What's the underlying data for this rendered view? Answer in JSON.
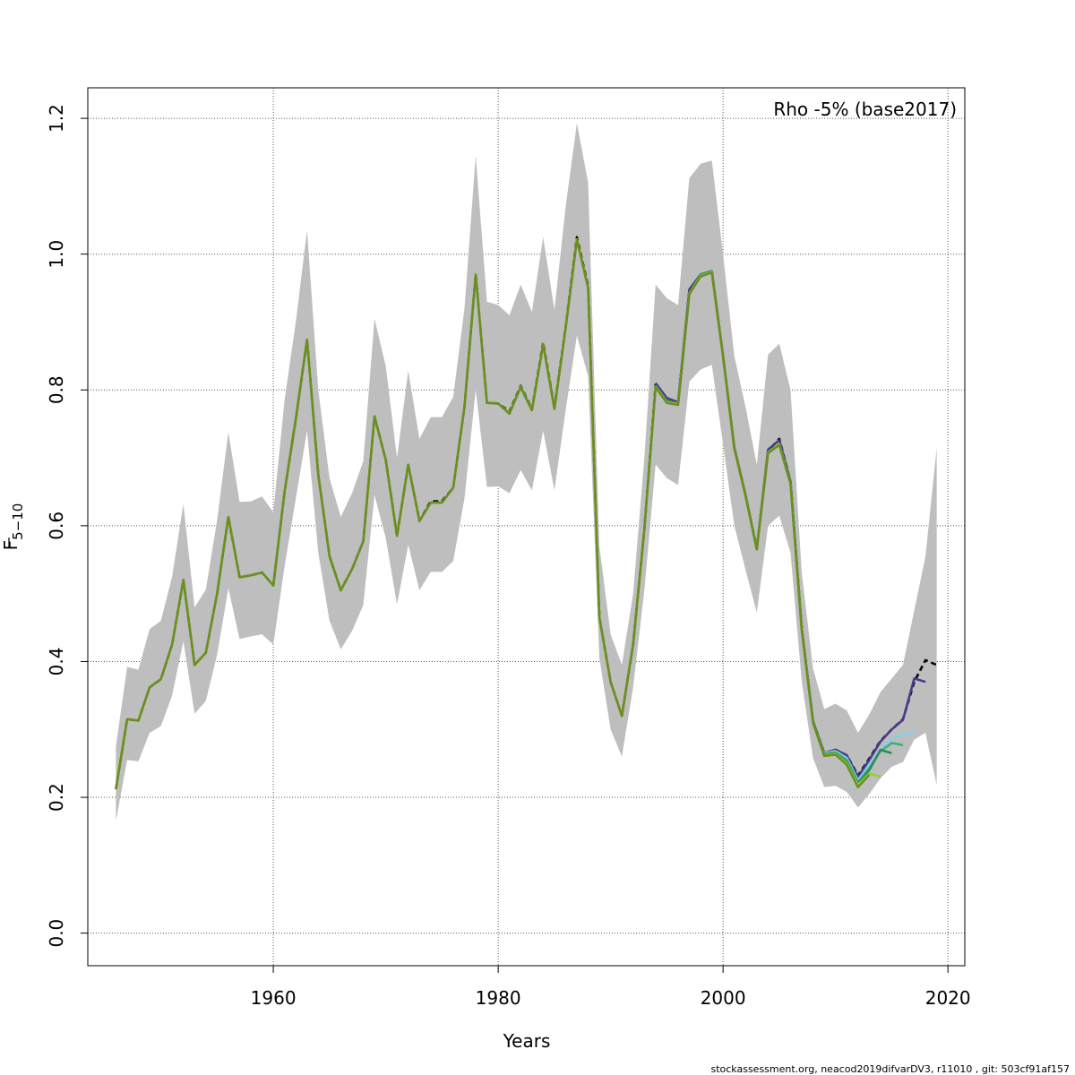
{
  "chart_data": {
    "type": "line",
    "title": "",
    "xlabel": "Years",
    "ylabel_main": "F",
    "ylabel_sub": "5−10",
    "annotation": "Rho -5% (base2017)",
    "xlim": [
      1943.5,
      2021.5
    ],
    "ylim": [
      -0.048,
      1.245
    ],
    "xticks": [
      1960,
      1980,
      2000,
      2020
    ],
    "yticks": [
      0.0,
      0.2,
      0.4,
      0.6,
      0.8,
      1.0,
      1.2
    ],
    "xgrid": [
      1960,
      1980,
      2000,
      2020
    ],
    "ygrid": [
      0.0,
      0.2,
      0.4,
      0.6,
      0.8,
      1.0,
      1.2
    ],
    "grid": true,
    "confidence_band": {
      "name": "",
      "color": "#bebebe",
      "x": [
        1946,
        1947,
        1948,
        1949,
        1950,
        1951,
        1952,
        1953,
        1954,
        1955,
        1956,
        1957,
        1958,
        1959,
        1960,
        1961,
        1962,
        1963,
        1964,
        1965,
        1966,
        1967,
        1968,
        1969,
        1970,
        1971,
        1972,
        1973,
        1974,
        1975,
        1976,
        1977,
        1978,
        1979,
        1980,
        1981,
        1982,
        1983,
        1984,
        1985,
        1986,
        1987,
        1988,
        1989,
        1990,
        1991,
        1992,
        1993,
        1994,
        1995,
        1996,
        1997,
        1998,
        1999,
        2000,
        2001,
        2002,
        2003,
        2004,
        2005,
        2006,
        2007,
        2008,
        2009,
        2010,
        2011,
        2012,
        2013,
        2014,
        2015,
        2016,
        2017,
        2018,
        2019
      ],
      "lower": [
        0.165,
        0.255,
        0.253,
        0.295,
        0.305,
        0.35,
        0.43,
        0.323,
        0.342,
        0.41,
        0.508,
        0.433,
        0.437,
        0.44,
        0.425,
        0.54,
        0.64,
        0.74,
        0.56,
        0.46,
        0.418,
        0.445,
        0.483,
        0.645,
        0.582,
        0.484,
        0.572,
        0.505,
        0.532,
        0.532,
        0.548,
        0.64,
        0.8,
        0.657,
        0.658,
        0.648,
        0.682,
        0.652,
        0.74,
        0.652,
        0.77,
        0.88,
        0.82,
        0.405,
        0.3,
        0.26,
        0.362,
        0.505,
        0.69,
        0.67,
        0.66,
        0.812,
        0.83,
        0.837,
        0.72,
        0.6,
        0.535,
        0.472,
        0.6,
        0.615,
        0.56,
        0.37,
        0.258,
        0.215,
        0.217,
        0.208,
        0.185,
        0.205,
        0.228,
        0.245,
        0.252,
        0.285,
        0.295,
        0.218
      ],
      "upper": [
        0.275,
        0.392,
        0.388,
        0.448,
        0.46,
        0.525,
        0.632,
        0.48,
        0.506,
        0.608,
        0.738,
        0.635,
        0.636,
        0.643,
        0.62,
        0.785,
        0.9,
        1.035,
        0.8,
        0.67,
        0.613,
        0.648,
        0.695,
        0.905,
        0.835,
        0.7,
        0.828,
        0.728,
        0.76,
        0.76,
        0.79,
        0.92,
        1.145,
        0.93,
        0.925,
        0.91,
        0.955,
        0.915,
        1.025,
        0.918,
        1.07,
        1.193,
        1.105,
        0.57,
        0.44,
        0.395,
        0.5,
        0.7,
        0.955,
        0.935,
        0.925,
        1.112,
        1.133,
        1.138,
        1.0,
        0.85,
        0.775,
        0.69,
        0.852,
        0.868,
        0.8,
        0.53,
        0.39,
        0.33,
        0.338,
        0.328,
        0.295,
        0.322,
        0.355,
        0.375,
        0.395,
        0.475,
        0.555,
        0.715
      ]
    },
    "series": [
      {
        "color": "#000000",
        "dashed": true,
        "x": [
          1946,
          1947,
          1948,
          1949,
          1950,
          1951,
          1952,
          1953,
          1954,
          1955,
          1956,
          1957,
          1958,
          1959,
          1960,
          1961,
          1962,
          1963,
          1964,
          1965,
          1966,
          1967,
          1968,
          1969,
          1970,
          1971,
          1972,
          1973,
          1974,
          1975,
          1976,
          1977,
          1978,
          1979,
          1980,
          1981,
          1982,
          1983,
          1984,
          1985,
          1986,
          1987,
          1988,
          1989,
          1990,
          1991,
          1992,
          1993,
          1994,
          1995,
          1996,
          1997,
          1998,
          1999,
          2000,
          2001,
          2002,
          2003,
          2004,
          2005,
          2006,
          2007,
          2008,
          2009,
          2010,
          2011,
          2012,
          2013,
          2014,
          2015,
          2016,
          2017,
          2018,
          2019
        ],
        "values": [
          0.212,
          0.315,
          0.313,
          0.362,
          0.374,
          0.425,
          0.52,
          0.395,
          0.413,
          0.5,
          0.613,
          0.524,
          0.527,
          0.531,
          0.512,
          0.65,
          0.757,
          0.874,
          0.675,
          0.555,
          0.505,
          0.536,
          0.577,
          0.761,
          0.697,
          0.585,
          0.69,
          0.607,
          0.636,
          0.636,
          0.656,
          0.775,
          0.97,
          0.781,
          0.78,
          0.768,
          0.806,
          0.772,
          0.87,
          0.774,
          0.893,
          1.025,
          0.953,
          0.465,
          0.37,
          0.32,
          0.425,
          0.595,
          0.808,
          0.784,
          0.78,
          0.945,
          0.97,
          0.975,
          0.85,
          0.715,
          0.645,
          0.566,
          0.71,
          0.728,
          0.665,
          0.448,
          0.312,
          0.265,
          0.27,
          0.262,
          0.232,
          0.257,
          0.283,
          0.3,
          0.315,
          0.37,
          0.402,
          0.395
        ]
      },
      {
        "color": "#483d8b",
        "dashed": false,
        "x": [
          1994,
          1995,
          1996,
          1997,
          1998,
          1999,
          2000,
          2001,
          2002,
          2003,
          2004,
          2005,
          2006,
          2007,
          2008,
          2009,
          2010,
          2011,
          2012,
          2013,
          2014,
          2015,
          2016,
          2017,
          2018
        ],
        "values": [
          0.81,
          0.788,
          0.782,
          0.948,
          0.97,
          0.975,
          0.85,
          0.715,
          0.645,
          0.566,
          0.712,
          0.726,
          0.665,
          0.448,
          0.312,
          0.265,
          0.27,
          0.262,
          0.23,
          0.255,
          0.282,
          0.3,
          0.314,
          0.375,
          0.37
        ]
      },
      {
        "color": "#87ceeb",
        "dashed": false,
        "x": [
          2009,
          2010,
          2011,
          2012,
          2013,
          2014,
          2015,
          2016,
          2017
        ],
        "values": [
          0.265,
          0.268,
          0.258,
          0.225,
          0.248,
          0.27,
          0.285,
          0.293,
          0.295
        ]
      },
      {
        "color": "#3cb371",
        "dashed": false,
        "x": [
          2009,
          2010,
          2011,
          2012,
          2013,
          2014,
          2015,
          2016
        ],
        "values": [
          0.264,
          0.266,
          0.255,
          0.222,
          0.243,
          0.268,
          0.28,
          0.277
        ]
      },
      {
        "color": "#2e8b57",
        "dashed": false,
        "x": [
          1994,
          1995,
          1996,
          1997,
          1998,
          1999,
          2000,
          2001,
          2002,
          2003,
          2004,
          2005,
          2006,
          2007,
          2008,
          2009,
          2010,
          2011,
          2012,
          2013,
          2014,
          2015
        ],
        "values": [
          0.806,
          0.784,
          0.78,
          0.942,
          0.97,
          0.975,
          0.85,
          0.715,
          0.645,
          0.566,
          0.708,
          0.72,
          0.665,
          0.448,
          0.312,
          0.263,
          0.265,
          0.252,
          0.22,
          0.24,
          0.27,
          0.265
        ]
      },
      {
        "color": "#9acd32",
        "dashed": false,
        "x": [
          1946,
          1947,
          1948,
          1949,
          1950,
          1951,
          1952,
          1953,
          1954,
          1955,
          1956,
          1957,
          1958,
          1959,
          1960,
          1961,
          1962,
          1963,
          1964,
          1965,
          1966,
          1967,
          1968,
          1969,
          1970,
          1971,
          1972,
          1973,
          1974,
          1975,
          1976,
          1977,
          1978,
          1979,
          1980,
          1981,
          1982,
          1983,
          1984,
          1985,
          1986,
          1987,
          1988,
          1989,
          1990,
          1991,
          1992,
          1993,
          1994,
          1995,
          1996,
          1997,
          1998,
          1999,
          2000,
          2001,
          2002,
          2003,
          2004,
          2005,
          2006,
          2007,
          2008,
          2009,
          2010,
          2011,
          2012,
          2013,
          2014
        ],
        "values": [
          0.212,
          0.315,
          0.313,
          0.362,
          0.374,
          0.425,
          0.52,
          0.395,
          0.413,
          0.5,
          0.613,
          0.524,
          0.527,
          0.531,
          0.512,
          0.65,
          0.757,
          0.874,
          0.675,
          0.555,
          0.505,
          0.536,
          0.577,
          0.761,
          0.697,
          0.585,
          0.69,
          0.607,
          0.634,
          0.634,
          0.656,
          0.775,
          0.97,
          0.781,
          0.78,
          0.766,
          0.805,
          0.771,
          0.868,
          0.773,
          0.892,
          1.022,
          0.951,
          0.465,
          0.37,
          0.32,
          0.425,
          0.595,
          0.805,
          0.782,
          0.779,
          0.942,
          0.968,
          0.974,
          0.85,
          0.714,
          0.644,
          0.565,
          0.708,
          0.72,
          0.662,
          0.446,
          0.31,
          0.262,
          0.264,
          0.25,
          0.218,
          0.235,
          0.23
        ]
      },
      {
        "color": "#6b8e23",
        "dashed": false,
        "x": [
          1946,
          1947,
          1948,
          1949,
          1950,
          1951,
          1952,
          1953,
          1954,
          1955,
          1956,
          1957,
          1958,
          1959,
          1960,
          1961,
          1962,
          1963,
          1964,
          1965,
          1966,
          1967,
          1968,
          1969,
          1970,
          1971,
          1972,
          1973,
          1974,
          1975,
          1976,
          1977,
          1978,
          1979,
          1980,
          1981,
          1982,
          1983,
          1984,
          1985,
          1986,
          1987,
          1988,
          1989,
          1990,
          1991,
          1992,
          1993,
          1994,
          1995,
          1996,
          1997,
          1998,
          1999,
          2000,
          2001,
          2002,
          2003,
          2004,
          2005,
          2006,
          2007,
          2008,
          2009,
          2010,
          2011,
          2012,
          2013
        ],
        "values": [
          0.212,
          0.315,
          0.313,
          0.362,
          0.374,
          0.425,
          0.52,
          0.395,
          0.413,
          0.5,
          0.613,
          0.524,
          0.527,
          0.531,
          0.512,
          0.65,
          0.757,
          0.874,
          0.675,
          0.555,
          0.505,
          0.536,
          0.577,
          0.761,
          0.697,
          0.585,
          0.69,
          0.607,
          0.634,
          0.634,
          0.656,
          0.775,
          0.97,
          0.781,
          0.78,
          0.765,
          0.804,
          0.77,
          0.867,
          0.772,
          0.891,
          1.021,
          0.95,
          0.465,
          0.37,
          0.32,
          0.425,
          0.595,
          0.804,
          0.781,
          0.778,
          0.941,
          0.967,
          0.973,
          0.85,
          0.714,
          0.644,
          0.565,
          0.707,
          0.719,
          0.662,
          0.446,
          0.31,
          0.261,
          0.263,
          0.248,
          0.215,
          0.233
        ]
      }
    ]
  },
  "footer": "stockassessment.org, neacod2019difvarDV3, r11010 , git: 503cf91af157"
}
